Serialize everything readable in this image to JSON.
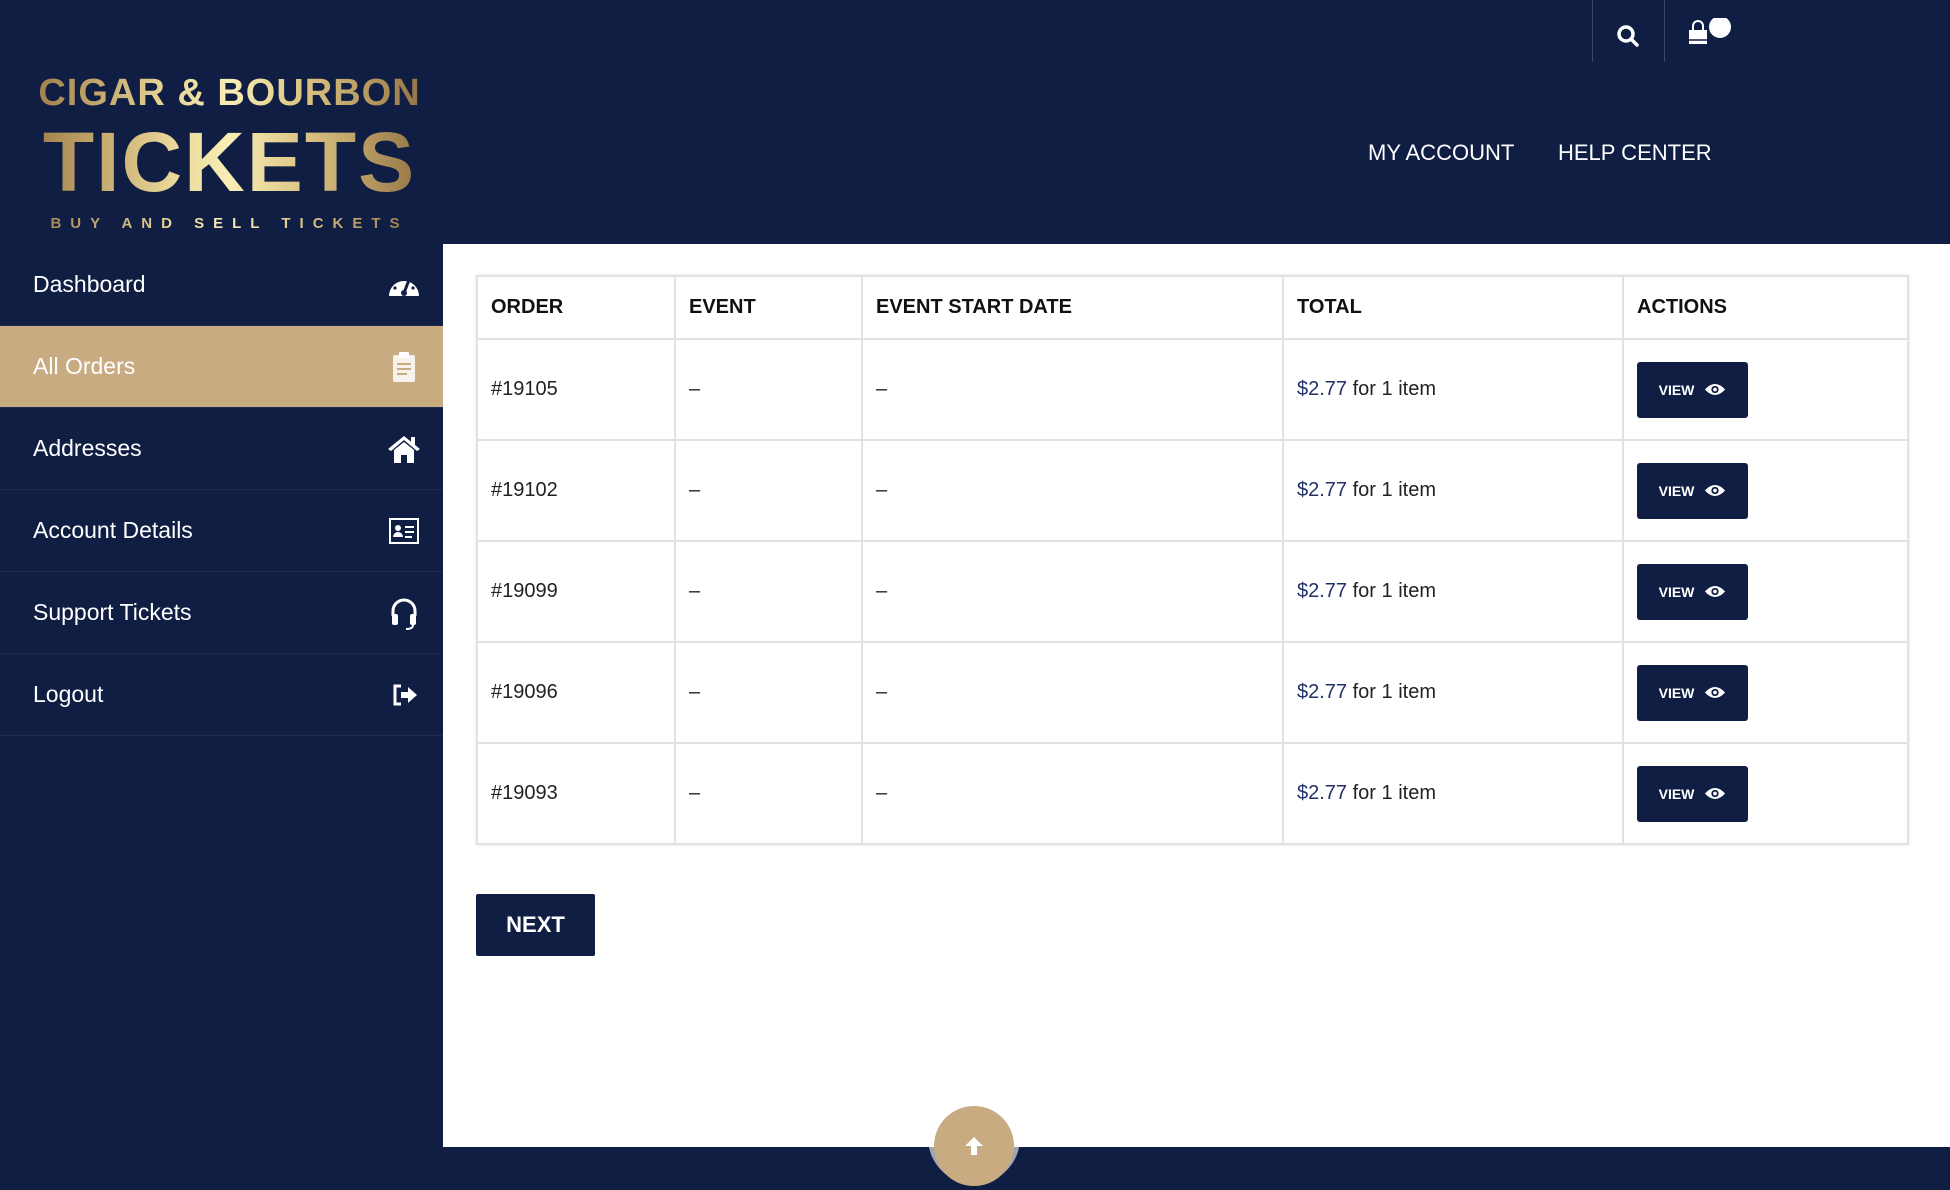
{
  "brand": {
    "line1": "CIGAR & BOURBON",
    "line2": "TICKETS",
    "tagline": "BUY AND SELL TICKETS"
  },
  "header": {
    "nav": [
      "MY ACCOUNT",
      "HELP CENTER"
    ],
    "icons": [
      "search-icon",
      "shopping-bag-icon"
    ]
  },
  "sidebar": {
    "items": [
      {
        "label": "Dashboard",
        "icon": "dashboard-gauge-icon"
      },
      {
        "label": "All Orders",
        "icon": "clipboard-icon",
        "active": true
      },
      {
        "label": "Addresses",
        "icon": "home-icon"
      },
      {
        "label": "Account Details",
        "icon": "id-card-icon"
      },
      {
        "label": "Support Tickets",
        "icon": "headset-icon"
      },
      {
        "label": "Logout",
        "icon": "sign-out-icon"
      }
    ]
  },
  "orders": {
    "columns": [
      "ORDER",
      "EVENT",
      "EVENT START DATE",
      "TOTAL",
      "ACTIONS"
    ],
    "rows": [
      {
        "order": "#19105",
        "event": "–",
        "date": "–",
        "price": "$2.77",
        "qty": " for 1 item",
        "action": "VIEW"
      },
      {
        "order": "#19102",
        "event": "–",
        "date": "–",
        "price": "$2.77",
        "qty": " for 1 item",
        "action": "VIEW"
      },
      {
        "order": "#19099",
        "event": "–",
        "date": "–",
        "price": "$2.77",
        "qty": " for 1 item",
        "action": "VIEW"
      },
      {
        "order": "#19096",
        "event": "–",
        "date": "–",
        "price": "$2.77",
        "qty": " for 1 item",
        "action": "VIEW"
      },
      {
        "order": "#19093",
        "event": "–",
        "date": "–",
        "price": "$2.77",
        "qty": " for 1 item",
        "action": "VIEW"
      }
    ],
    "next_label": "NEXT"
  },
  "colors": {
    "navy": "#101e44",
    "gold": "#c9ab82"
  }
}
